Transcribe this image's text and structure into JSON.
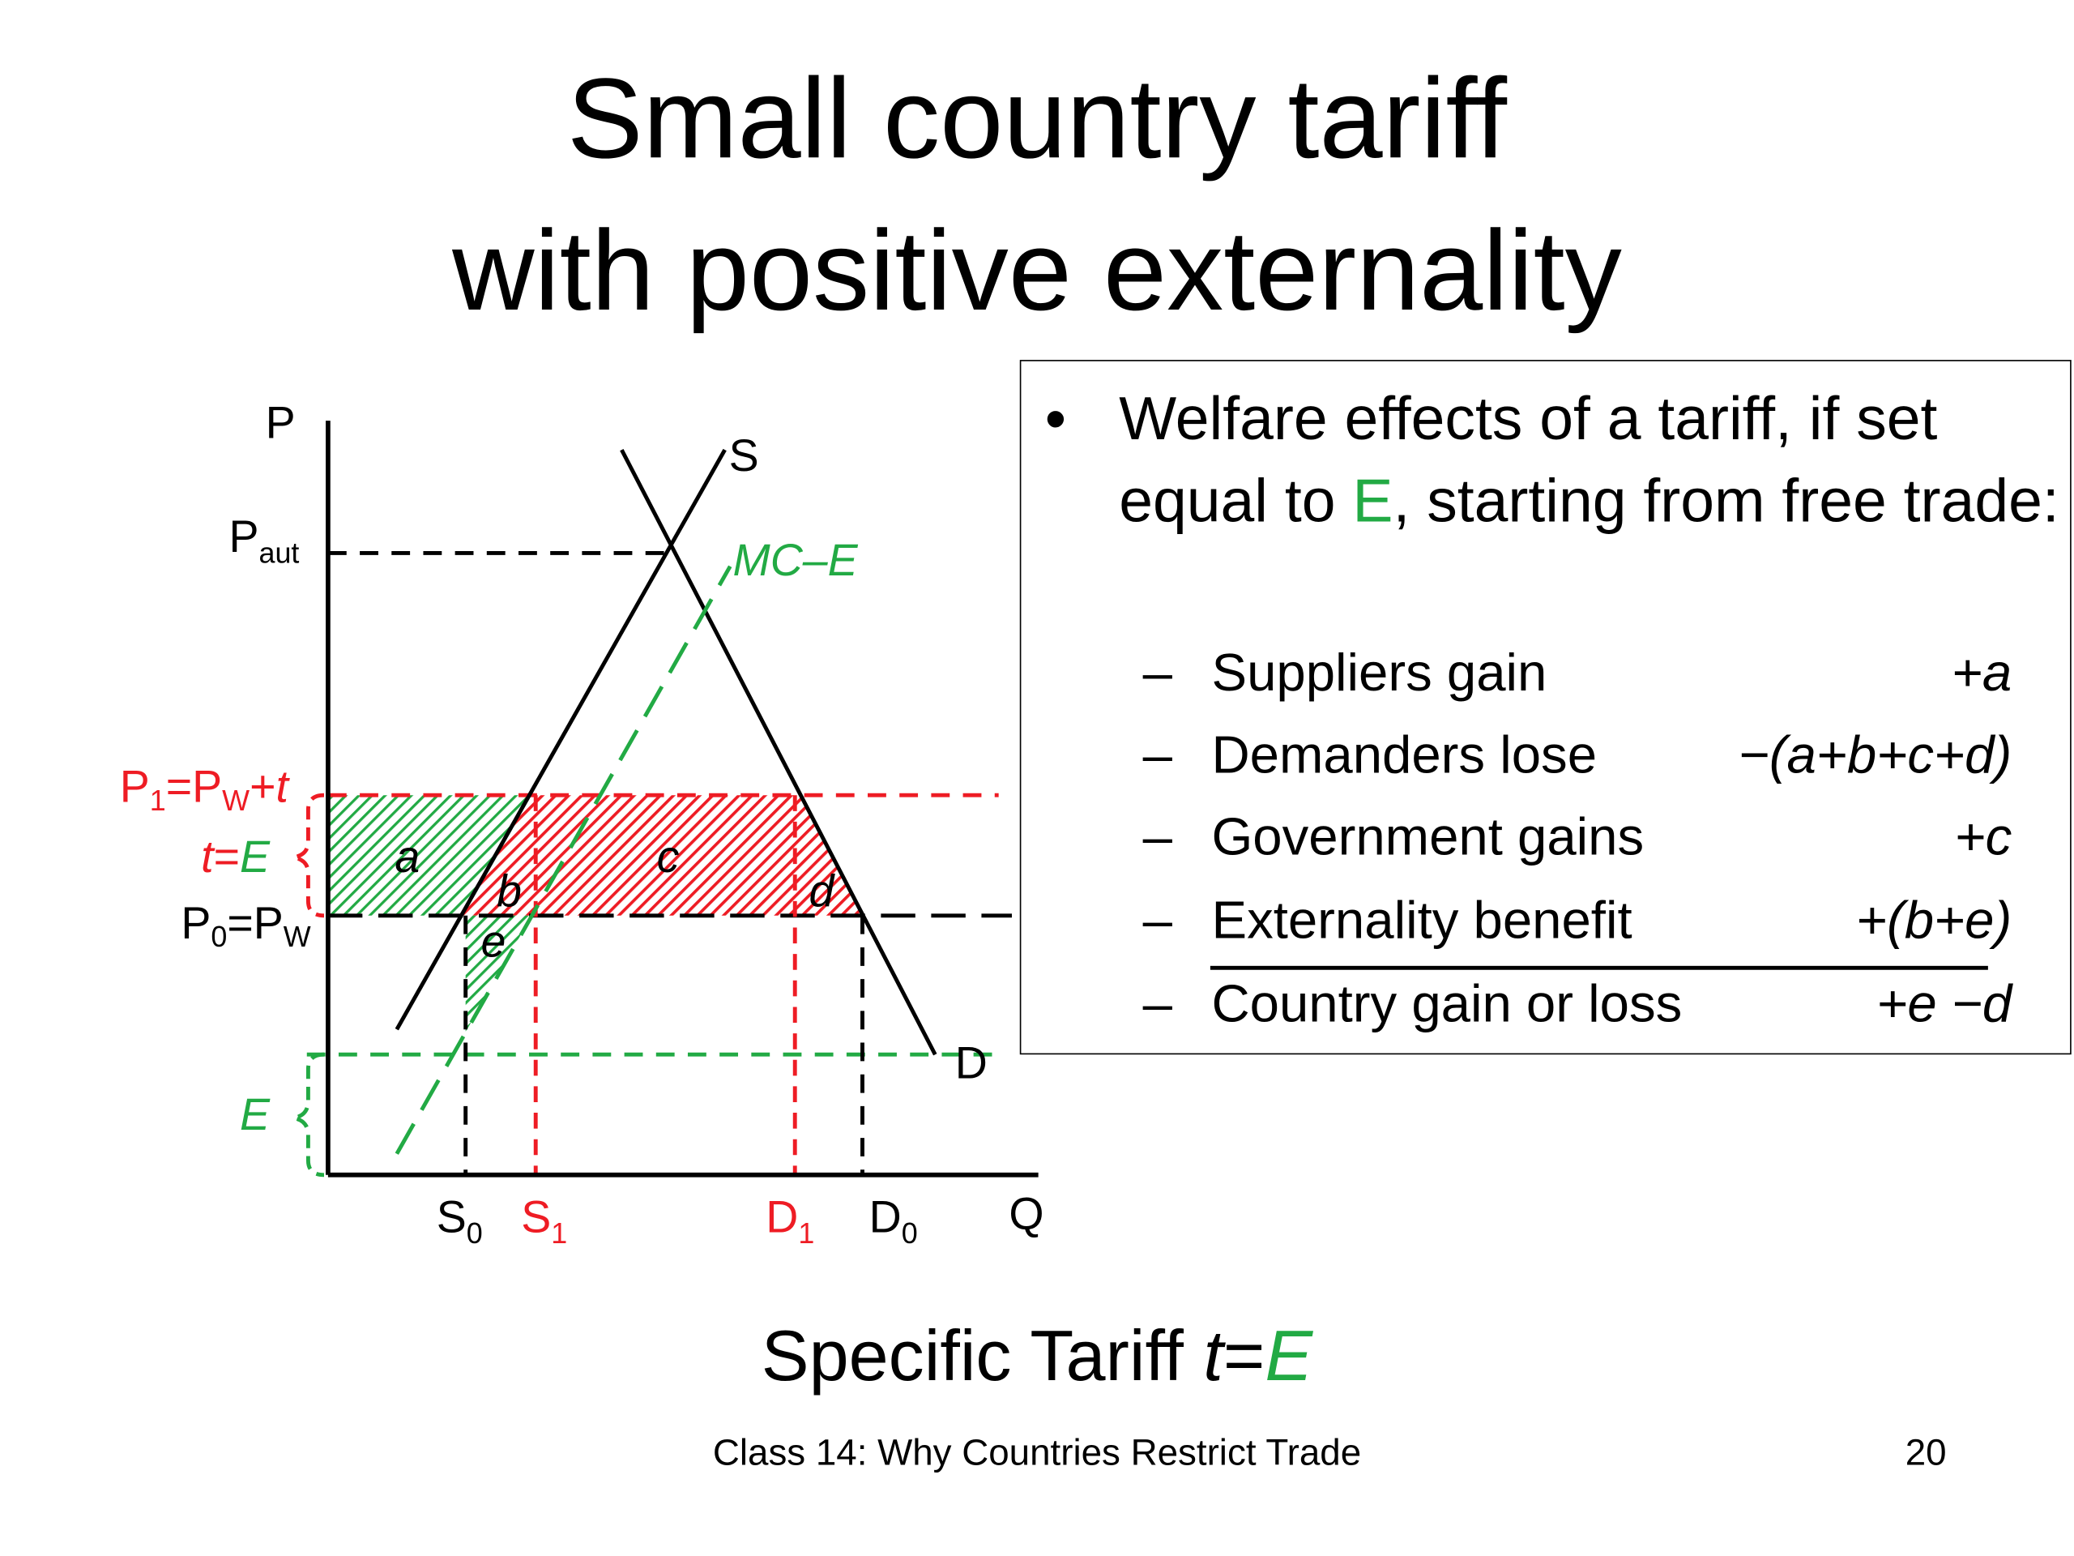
{
  "title": [
    "Small country tariff",
    "with positive externality"
  ],
  "diagram": {
    "axis_labels": {
      "p": "P",
      "q": "Q"
    },
    "curves": {
      "supply": "S",
      "demand": "D",
      "mc_minus_e": "MC–E"
    },
    "price_labels": {
      "p_aut": [
        "P",
        "aut"
      ],
      "p1": [
        "P",
        "1",
        "=P",
        "W",
        "+",
        "t"
      ],
      "t_equals_e": [
        "t",
        "=",
        "E"
      ],
      "p0": [
        "P",
        "0",
        "=P",
        "W"
      ],
      "e": "E"
    },
    "quantity_labels": {
      "s0": [
        "S",
        "0"
      ],
      "s1": [
        "S",
        "1"
      ],
      "d1": [
        "D",
        "1"
      ],
      "d0": [
        "D",
        "0"
      ]
    },
    "areas": {
      "a": "a",
      "b": "b",
      "c": "c",
      "d": "d",
      "e": "e"
    }
  },
  "panel": {
    "bullet": [
      "Welfare effects of a tariff, if set equal to ",
      "E",
      ", starting from free trade:"
    ],
    "items": [
      {
        "label": "Suppliers gain",
        "effect": "+a"
      },
      {
        "label": "Demanders lose",
        "effect": "−(a+b+c+d)"
      },
      {
        "label": "Government gains",
        "effect": "+c"
      },
      {
        "label": "Externality benefit",
        "effect": "+(b+e)"
      },
      {
        "label": "Country gain or loss",
        "effect": "+e −d"
      }
    ]
  },
  "caption": [
    "Specific Tariff ",
    "t",
    "=",
    "E"
  ],
  "footer": {
    "text": "Class 14:  Why Countries Restrict Trade",
    "page": "20"
  }
}
